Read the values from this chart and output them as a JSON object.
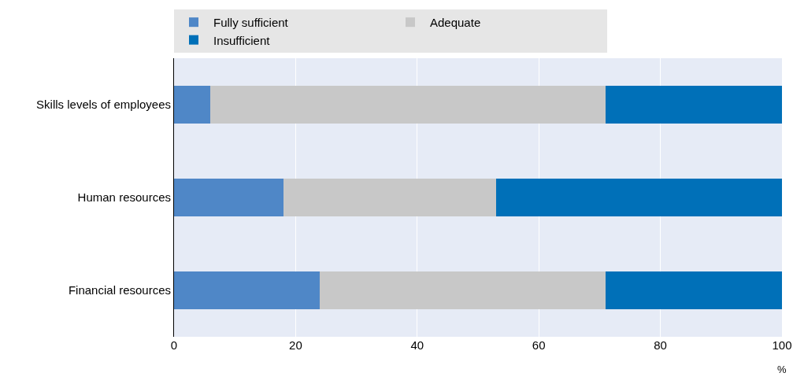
{
  "chart_data": {
    "type": "bar",
    "orientation": "horizontal",
    "stacked": true,
    "categories": [
      "Skills levels of employees",
      "Human resources",
      "Financial resources"
    ],
    "series": [
      {
        "name": "Fully sufficient",
        "color": "#4f87c7",
        "values": [
          6,
          18,
          24
        ]
      },
      {
        "name": "Adequate",
        "color": "#c8c8c8",
        "values": [
          65,
          35,
          47
        ]
      },
      {
        "name": "Insufficient",
        "color": "#0070b8",
        "values": [
          29,
          47,
          29
        ]
      }
    ],
    "xlim": [
      0,
      100
    ],
    "xticks": [
      0,
      20,
      40,
      60,
      80,
      100
    ],
    "xlabel": "%",
    "grid": "x",
    "legend": "top"
  }
}
